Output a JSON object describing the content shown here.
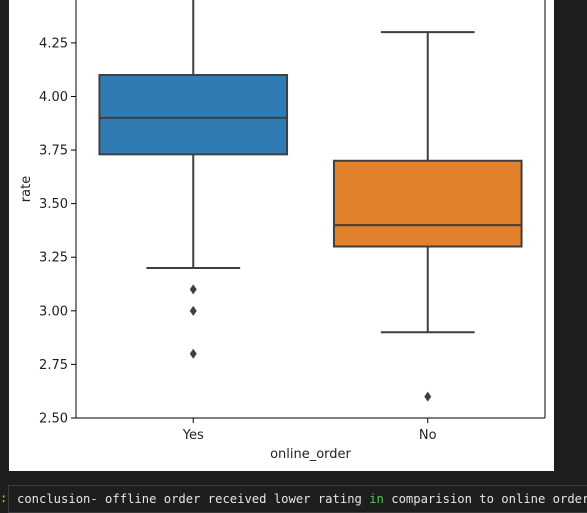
{
  "chart_data": {
    "type": "boxplot",
    "xlabel": "online_order",
    "ylabel": "rate",
    "ylim": [
      2.5,
      4.45
    ],
    "yticks": [
      "2.50",
      "2.75",
      "3.00",
      "3.25",
      "3.50",
      "3.75",
      "4.00",
      "4.25"
    ],
    "categories": [
      "Yes",
      "No"
    ],
    "boxes": [
      {
        "category": "Yes",
        "color": "#2f7cb5",
        "whisker_low": 3.2,
        "q1": 3.73,
        "median": 3.9,
        "q3": 4.1,
        "whisker_high": 4.45,
        "outliers": [
          3.1,
          3.0,
          2.8
        ]
      },
      {
        "category": "No",
        "color": "#e1812c",
        "whisker_low": 2.9,
        "q1": 3.3,
        "median": 3.4,
        "q3": 3.7,
        "whisker_high": 4.3,
        "outliers": [
          2.6
        ]
      }
    ],
    "grid": false,
    "legend": "none"
  },
  "notebook": {
    "cell_marker": ":",
    "conclusion": {
      "part1": "conclusion",
      "dash": "-",
      "part2": " offline order received lower rating ",
      "keyword": "in",
      "part3": " comparision to online order."
    }
  }
}
